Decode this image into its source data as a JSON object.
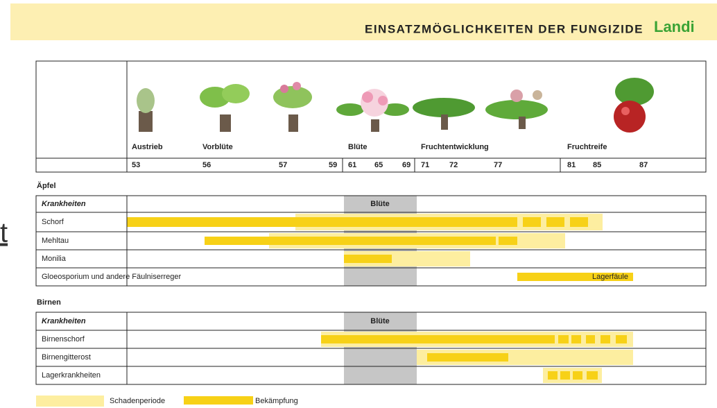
{
  "header": {
    "title": "EINSATZMÖGLICHKEITEN DER FUNGIZIDE",
    "brand": "Landi"
  },
  "fragment": "t",
  "stages": [
    "Austrieb",
    "Vorblüte",
    "Blüte",
    "Fruchtentwicklung",
    "Fruchtreife"
  ],
  "stage_numbers": [
    53,
    56,
    57,
    59,
    61,
    65,
    69,
    71,
    72,
    77,
    81,
    85,
    87
  ],
  "sections": [
    {
      "title": "Äpfel",
      "column_header": "Krankheiten",
      "bloom_label": "Blüte",
      "rows": [
        "Schorf",
        "Mehltau",
        "Monilia",
        "Gloeosporium und andere Fäulniserreger"
      ],
      "bar_label": "Lagerfäule"
    },
    {
      "title": "Birnen",
      "column_header": "Krankheiten",
      "bloom_label": "Blüte",
      "rows": [
        "Birnenschorf",
        "Birnengitterost",
        "Lagerkrankheiten"
      ]
    }
  ],
  "legend": [
    "Schadenperiode",
    "Bekämpfung"
  ]
}
